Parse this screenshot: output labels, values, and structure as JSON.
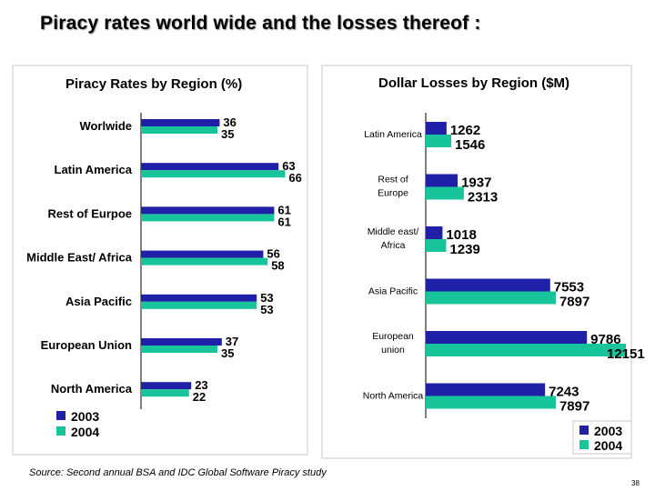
{
  "slide_title": "Piracy rates world wide and the losses thereof :",
  "source": "Source: Second annual BSA and IDC  Global Software Piracy study",
  "page_number": "38",
  "colors": {
    "y2003": "#1f1fa8",
    "y2004": "#18c49a"
  },
  "chart_data": [
    {
      "type": "bar",
      "orientation": "horizontal",
      "title": "Piracy Rates by Region (%)",
      "categories": [
        "Worlwide",
        "Latin America",
        "Rest of Eurpoe",
        "Middle East/ Africa",
        "Asia Pacific",
        "European Union",
        "North America"
      ],
      "series": [
        {
          "name": "2003",
          "values": [
            36,
            63,
            61,
            56,
            53,
            37,
            23
          ]
        },
        {
          "name": "2004",
          "values": [
            35,
            66,
            61,
            58,
            53,
            35,
            22
          ]
        }
      ],
      "xlim": [
        0,
        70
      ],
      "grid": false,
      "legend": "bottom-left"
    },
    {
      "type": "bar",
      "orientation": "horizontal",
      "title": "Dollar Losses by Region ($M)",
      "categories": [
        "Latin America",
        "Rest of Europe",
        "Middle east/ Africa",
        "Asia Pacific",
        "European union",
        "North America"
      ],
      "series": [
        {
          "name": "2003",
          "values": [
            1262,
            1937,
            1018,
            7553,
            9786,
            7243
          ]
        },
        {
          "name": "2004",
          "values": [
            1546,
            2313,
            1239,
            7897,
            12151,
            7897
          ]
        }
      ],
      "xlim": [
        0,
        12500
      ],
      "grid": false,
      "legend": "bottom-right"
    }
  ]
}
